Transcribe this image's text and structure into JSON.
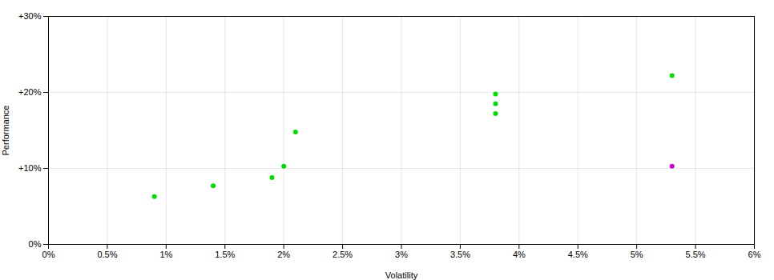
{
  "chart_data": {
    "type": "scatter",
    "xlabel": "Volatility",
    "ylabel": "Performance",
    "xlim": [
      0,
      0.06
    ],
    "ylim": [
      0,
      0.3
    ],
    "xticks": [
      {
        "value": 0,
        "label": "0%"
      },
      {
        "value": 0.005,
        "label": "0.5%"
      },
      {
        "value": 0.01,
        "label": "1%"
      },
      {
        "value": 0.015,
        "label": "1.5%"
      },
      {
        "value": 0.02,
        "label": "2%"
      },
      {
        "value": 0.025,
        "label": "2.5%"
      },
      {
        "value": 0.03,
        "label": "3%"
      },
      {
        "value": 0.035,
        "label": "3.5%"
      },
      {
        "value": 0.04,
        "label": "4%"
      },
      {
        "value": 0.045,
        "label": "4.5%"
      },
      {
        "value": 0.05,
        "label": "5%"
      },
      {
        "value": 0.055,
        "label": "5.5%"
      },
      {
        "value": 0.06,
        "label": "6%"
      }
    ],
    "yticks": [
      {
        "value": 0,
        "label": "0%"
      },
      {
        "value": 0.1,
        "label": "+10%"
      },
      {
        "value": 0.2,
        "label": "+20%"
      },
      {
        "value": 0.3,
        "label": "+30%"
      }
    ],
    "grid": true,
    "series": [
      {
        "color": "#00dd00",
        "x": [
          0.009,
          0.014,
          0.019,
          0.02,
          0.021,
          0.038,
          0.038,
          0.038,
          0.053
        ],
        "y": [
          0.063,
          0.077,
          0.088,
          0.103,
          0.148,
          0.198,
          0.185,
          0.172,
          0.222
        ]
      },
      {
        "color": "#cc00cc",
        "x": [
          0.053
        ],
        "y": [
          0.103
        ]
      }
    ]
  }
}
